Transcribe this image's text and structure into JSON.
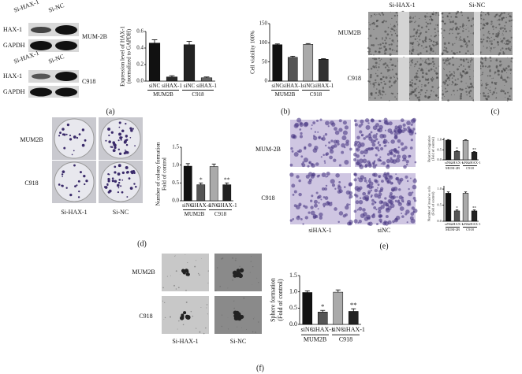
{
  "chart_data": [
    {
      "type": "bar",
      "ylabel": [
        "Expression level of HAX-1",
        "(normalized to GAPDH)"
      ],
      "categories": [
        "siNC",
        "siHAX-1",
        "siNC",
        "siHAX-1"
      ],
      "groups": [
        "MUM2B",
        "C918"
      ],
      "values": [
        0.46,
        0.05,
        0.44,
        0.04
      ],
      "errors": [
        0.04,
        0.015,
        0.04,
        0.01
      ],
      "colors": [
        "#111111",
        "#2a2a2a",
        "#222222",
        "#666666"
      ],
      "ylim": [
        0,
        0.6
      ],
      "yticks": [
        {
          "value": 0,
          "label": "0.0"
        },
        0.2,
        0.4,
        0.6
      ]
    },
    {
      "type": "bar",
      "ylabel": [
        "Cell viability 100%"
      ],
      "categories": [
        "siNC",
        "siHAX-1",
        "siNC",
        "siHAX-1"
      ],
      "groups": [
        "MUM2B",
        "C918"
      ],
      "values": [
        95,
        62,
        96,
        57
      ],
      "errors": [
        2,
        3,
        2,
        1.5
      ],
      "colors": [
        "#111111",
        "#555555",
        "#aaaaaa",
        "#333333"
      ],
      "ylim": [
        0,
        150
      ],
      "yticks": [
        0,
        50,
        100,
        150
      ]
    },
    {
      "type": "bar",
      "ylabel": [
        "Number of colony formation",
        "Fold of control"
      ],
      "categories": [
        "siNC",
        "siHAX-1",
        "siNC",
        "siHAX-1"
      ],
      "groups": [
        "MUM2B",
        "C918"
      ],
      "values": [
        0.97,
        0.45,
        0.96,
        0.45
      ],
      "errors": [
        0.07,
        0.05,
        0.07,
        0.05
      ],
      "annotations": [
        null,
        "*",
        null,
        "**"
      ],
      "colors": [
        "#111111",
        "#555555",
        "#aaaaaa",
        "#222222"
      ],
      "ylim": [
        0,
        1.5
      ],
      "yticks": [
        {
          "value": 0,
          "label": "0.0"
        },
        0.5,
        {
          "value": 1,
          "label": "1.0"
        },
        1.5
      ]
    },
    {
      "type": "bar",
      "ylabel": [
        "Relative migration",
        "(Fold of control)"
      ],
      "categories": [
        "siNC",
        "siHAX-1",
        "siNC",
        "siHAX-1"
      ],
      "groups": [
        "MUM-2B",
        "C918"
      ],
      "values": [
        0.98,
        0.42,
        0.97,
        0.38
      ],
      "errors": [
        0.03,
        0.03,
        0.03,
        0.03
      ],
      "annotations": [
        null,
        "*",
        null,
        "**"
      ],
      "colors": [
        "#111111",
        "#555555",
        "#aaaaaa",
        "#222222"
      ],
      "ylim": [
        0,
        1.1
      ],
      "yticks": [
        {
          "value": 0,
          "label": "0.0"
        },
        0.5,
        {
          "value": 1,
          "label": "1.0"
        }
      ]
    },
    {
      "type": "bar",
      "ylabel": [
        "Number of invasive cells",
        "(Fold of control)"
      ],
      "categories": [
        "siNC",
        "siHAX-1",
        "siNC",
        "siHAX-1"
      ],
      "groups": [
        "MUM-2B",
        "C918"
      ],
      "values": [
        0.87,
        0.32,
        0.87,
        0.32
      ],
      "errors": [
        0.04,
        0.03,
        0.04,
        0.03
      ],
      "annotations": [
        null,
        "*",
        null,
        "**"
      ],
      "colors": [
        "#111111",
        "#555555",
        "#aaaaaa",
        "#222222"
      ],
      "ylim": [
        0,
        1.1
      ],
      "yticks": [
        {
          "value": 0,
          "label": "0.0"
        },
        0.5,
        {
          "value": 1,
          "label": "1.0"
        }
      ]
    },
    {
      "type": "bar",
      "ylabel": [
        "Sphere formation",
        "(Fold of control)"
      ],
      "categories": [
        "siNC",
        "siHAX-1",
        "siNC",
        "siHAX-1"
      ],
      "groups": [
        "MUM2B",
        "C918"
      ],
      "values": [
        0.98,
        0.38,
        0.99,
        0.4
      ],
      "errors": [
        0.05,
        0.05,
        0.07,
        0.08
      ],
      "annotations": [
        null,
        "*",
        null,
        "**"
      ],
      "colors": [
        "#111111",
        "#555555",
        "#aaaaaa",
        "#222222"
      ],
      "ylim": [
        0,
        1.5
      ],
      "yticks": [
        {
          "value": 0,
          "label": "0.0"
        },
        0.5,
        {
          "value": 1,
          "label": "1.0"
        },
        1.5
      ]
    }
  ],
  "panels": {
    "a": {
      "label": "(a)",
      "lanes": [
        "Si-HAX-1",
        "Si-NC"
      ],
      "rows": [
        "HAX-1",
        "GAPDH"
      ],
      "cells": [
        "MUM-2B",
        "C918"
      ]
    },
    "b": {
      "label": "(b)"
    },
    "c": {
      "label": "(c)",
      "columns": [
        "Si-HAX-1",
        "Si-NC"
      ],
      "rows": [
        "MUM2B",
        "C918"
      ]
    },
    "d": {
      "label": "(d)",
      "columns": [
        "Si-HAX-1",
        "Si-NC"
      ],
      "rows": [
        "MUM2B",
        "C918"
      ]
    },
    "e": {
      "label": "(e)",
      "columns": [
        "siHAX-1",
        "siNC"
      ],
      "rows": [
        "MUM-2B",
        "C918"
      ]
    },
    "f": {
      "label": "(f)",
      "columns": [
        "Si-HAX-1",
        "Si-NC"
      ],
      "rows": [
        "MUM2B",
        "C918"
      ]
    }
  }
}
